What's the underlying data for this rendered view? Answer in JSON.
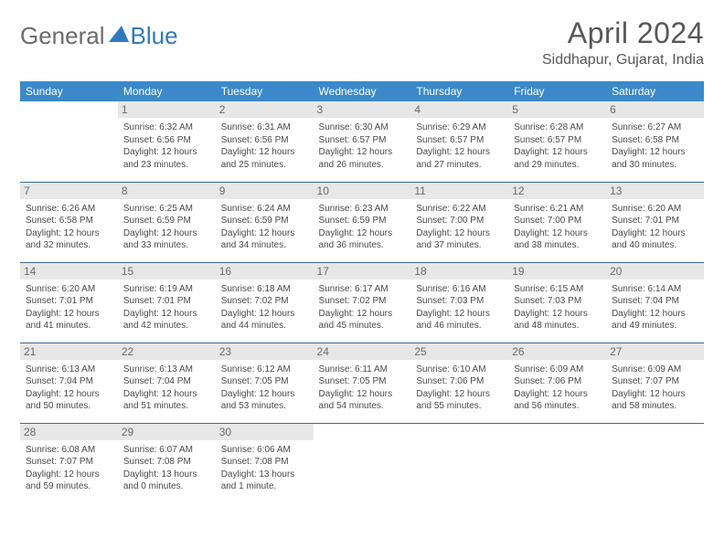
{
  "logo": {
    "text1": "General",
    "text2": "Blue"
  },
  "title": "April 2024",
  "location": "Siddhapur, Gujarat, India",
  "colors": {
    "header_bg": "#3b89c9",
    "header_text": "#ffffff",
    "daynum_bg": "#e7e7e7",
    "border": "#3b6b94",
    "logo_gray": "#6b6b6b",
    "logo_blue": "#2f7ac0"
  },
  "weekdays": [
    "Sunday",
    "Monday",
    "Tuesday",
    "Wednesday",
    "Thursday",
    "Friday",
    "Saturday"
  ],
  "weeks": [
    [
      null,
      {
        "n": "1",
        "sr": "Sunrise: 6:32 AM",
        "ss": "Sunset: 6:56 PM",
        "dl": "Daylight: 12 hours and 23 minutes."
      },
      {
        "n": "2",
        "sr": "Sunrise: 6:31 AM",
        "ss": "Sunset: 6:56 PM",
        "dl": "Daylight: 12 hours and 25 minutes."
      },
      {
        "n": "3",
        "sr": "Sunrise: 6:30 AM",
        "ss": "Sunset: 6:57 PM",
        "dl": "Daylight: 12 hours and 26 minutes."
      },
      {
        "n": "4",
        "sr": "Sunrise: 6:29 AM",
        "ss": "Sunset: 6:57 PM",
        "dl": "Daylight: 12 hours and 27 minutes."
      },
      {
        "n": "5",
        "sr": "Sunrise: 6:28 AM",
        "ss": "Sunset: 6:57 PM",
        "dl": "Daylight: 12 hours and 29 minutes."
      },
      {
        "n": "6",
        "sr": "Sunrise: 6:27 AM",
        "ss": "Sunset: 6:58 PM",
        "dl": "Daylight: 12 hours and 30 minutes."
      }
    ],
    [
      {
        "n": "7",
        "sr": "Sunrise: 6:26 AM",
        "ss": "Sunset: 6:58 PM",
        "dl": "Daylight: 12 hours and 32 minutes."
      },
      {
        "n": "8",
        "sr": "Sunrise: 6:25 AM",
        "ss": "Sunset: 6:59 PM",
        "dl": "Daylight: 12 hours and 33 minutes."
      },
      {
        "n": "9",
        "sr": "Sunrise: 6:24 AM",
        "ss": "Sunset: 6:59 PM",
        "dl": "Daylight: 12 hours and 34 minutes."
      },
      {
        "n": "10",
        "sr": "Sunrise: 6:23 AM",
        "ss": "Sunset: 6:59 PM",
        "dl": "Daylight: 12 hours and 36 minutes."
      },
      {
        "n": "11",
        "sr": "Sunrise: 6:22 AM",
        "ss": "Sunset: 7:00 PM",
        "dl": "Daylight: 12 hours and 37 minutes."
      },
      {
        "n": "12",
        "sr": "Sunrise: 6:21 AM",
        "ss": "Sunset: 7:00 PM",
        "dl": "Daylight: 12 hours and 38 minutes."
      },
      {
        "n": "13",
        "sr": "Sunrise: 6:20 AM",
        "ss": "Sunset: 7:01 PM",
        "dl": "Daylight: 12 hours and 40 minutes."
      }
    ],
    [
      {
        "n": "14",
        "sr": "Sunrise: 6:20 AM",
        "ss": "Sunset: 7:01 PM",
        "dl": "Daylight: 12 hours and 41 minutes."
      },
      {
        "n": "15",
        "sr": "Sunrise: 6:19 AM",
        "ss": "Sunset: 7:01 PM",
        "dl": "Daylight: 12 hours and 42 minutes."
      },
      {
        "n": "16",
        "sr": "Sunrise: 6:18 AM",
        "ss": "Sunset: 7:02 PM",
        "dl": "Daylight: 12 hours and 44 minutes."
      },
      {
        "n": "17",
        "sr": "Sunrise: 6:17 AM",
        "ss": "Sunset: 7:02 PM",
        "dl": "Daylight: 12 hours and 45 minutes."
      },
      {
        "n": "18",
        "sr": "Sunrise: 6:16 AM",
        "ss": "Sunset: 7:03 PM",
        "dl": "Daylight: 12 hours and 46 minutes."
      },
      {
        "n": "19",
        "sr": "Sunrise: 6:15 AM",
        "ss": "Sunset: 7:03 PM",
        "dl": "Daylight: 12 hours and 48 minutes."
      },
      {
        "n": "20",
        "sr": "Sunrise: 6:14 AM",
        "ss": "Sunset: 7:04 PM",
        "dl": "Daylight: 12 hours and 49 minutes."
      }
    ],
    [
      {
        "n": "21",
        "sr": "Sunrise: 6:13 AM",
        "ss": "Sunset: 7:04 PM",
        "dl": "Daylight: 12 hours and 50 minutes."
      },
      {
        "n": "22",
        "sr": "Sunrise: 6:13 AM",
        "ss": "Sunset: 7:04 PM",
        "dl": "Daylight: 12 hours and 51 minutes."
      },
      {
        "n": "23",
        "sr": "Sunrise: 6:12 AM",
        "ss": "Sunset: 7:05 PM",
        "dl": "Daylight: 12 hours and 53 minutes."
      },
      {
        "n": "24",
        "sr": "Sunrise: 6:11 AM",
        "ss": "Sunset: 7:05 PM",
        "dl": "Daylight: 12 hours and 54 minutes."
      },
      {
        "n": "25",
        "sr": "Sunrise: 6:10 AM",
        "ss": "Sunset: 7:06 PM",
        "dl": "Daylight: 12 hours and 55 minutes."
      },
      {
        "n": "26",
        "sr": "Sunrise: 6:09 AM",
        "ss": "Sunset: 7:06 PM",
        "dl": "Daylight: 12 hours and 56 minutes."
      },
      {
        "n": "27",
        "sr": "Sunrise: 6:09 AM",
        "ss": "Sunset: 7:07 PM",
        "dl": "Daylight: 12 hours and 58 minutes."
      }
    ],
    [
      {
        "n": "28",
        "sr": "Sunrise: 6:08 AM",
        "ss": "Sunset: 7:07 PM",
        "dl": "Daylight: 12 hours and 59 minutes."
      },
      {
        "n": "29",
        "sr": "Sunrise: 6:07 AM",
        "ss": "Sunset: 7:08 PM",
        "dl": "Daylight: 13 hours and 0 minutes."
      },
      {
        "n": "30",
        "sr": "Sunrise: 6:06 AM",
        "ss": "Sunset: 7:08 PM",
        "dl": "Daylight: 13 hours and 1 minute."
      },
      null,
      null,
      null,
      null
    ]
  ]
}
